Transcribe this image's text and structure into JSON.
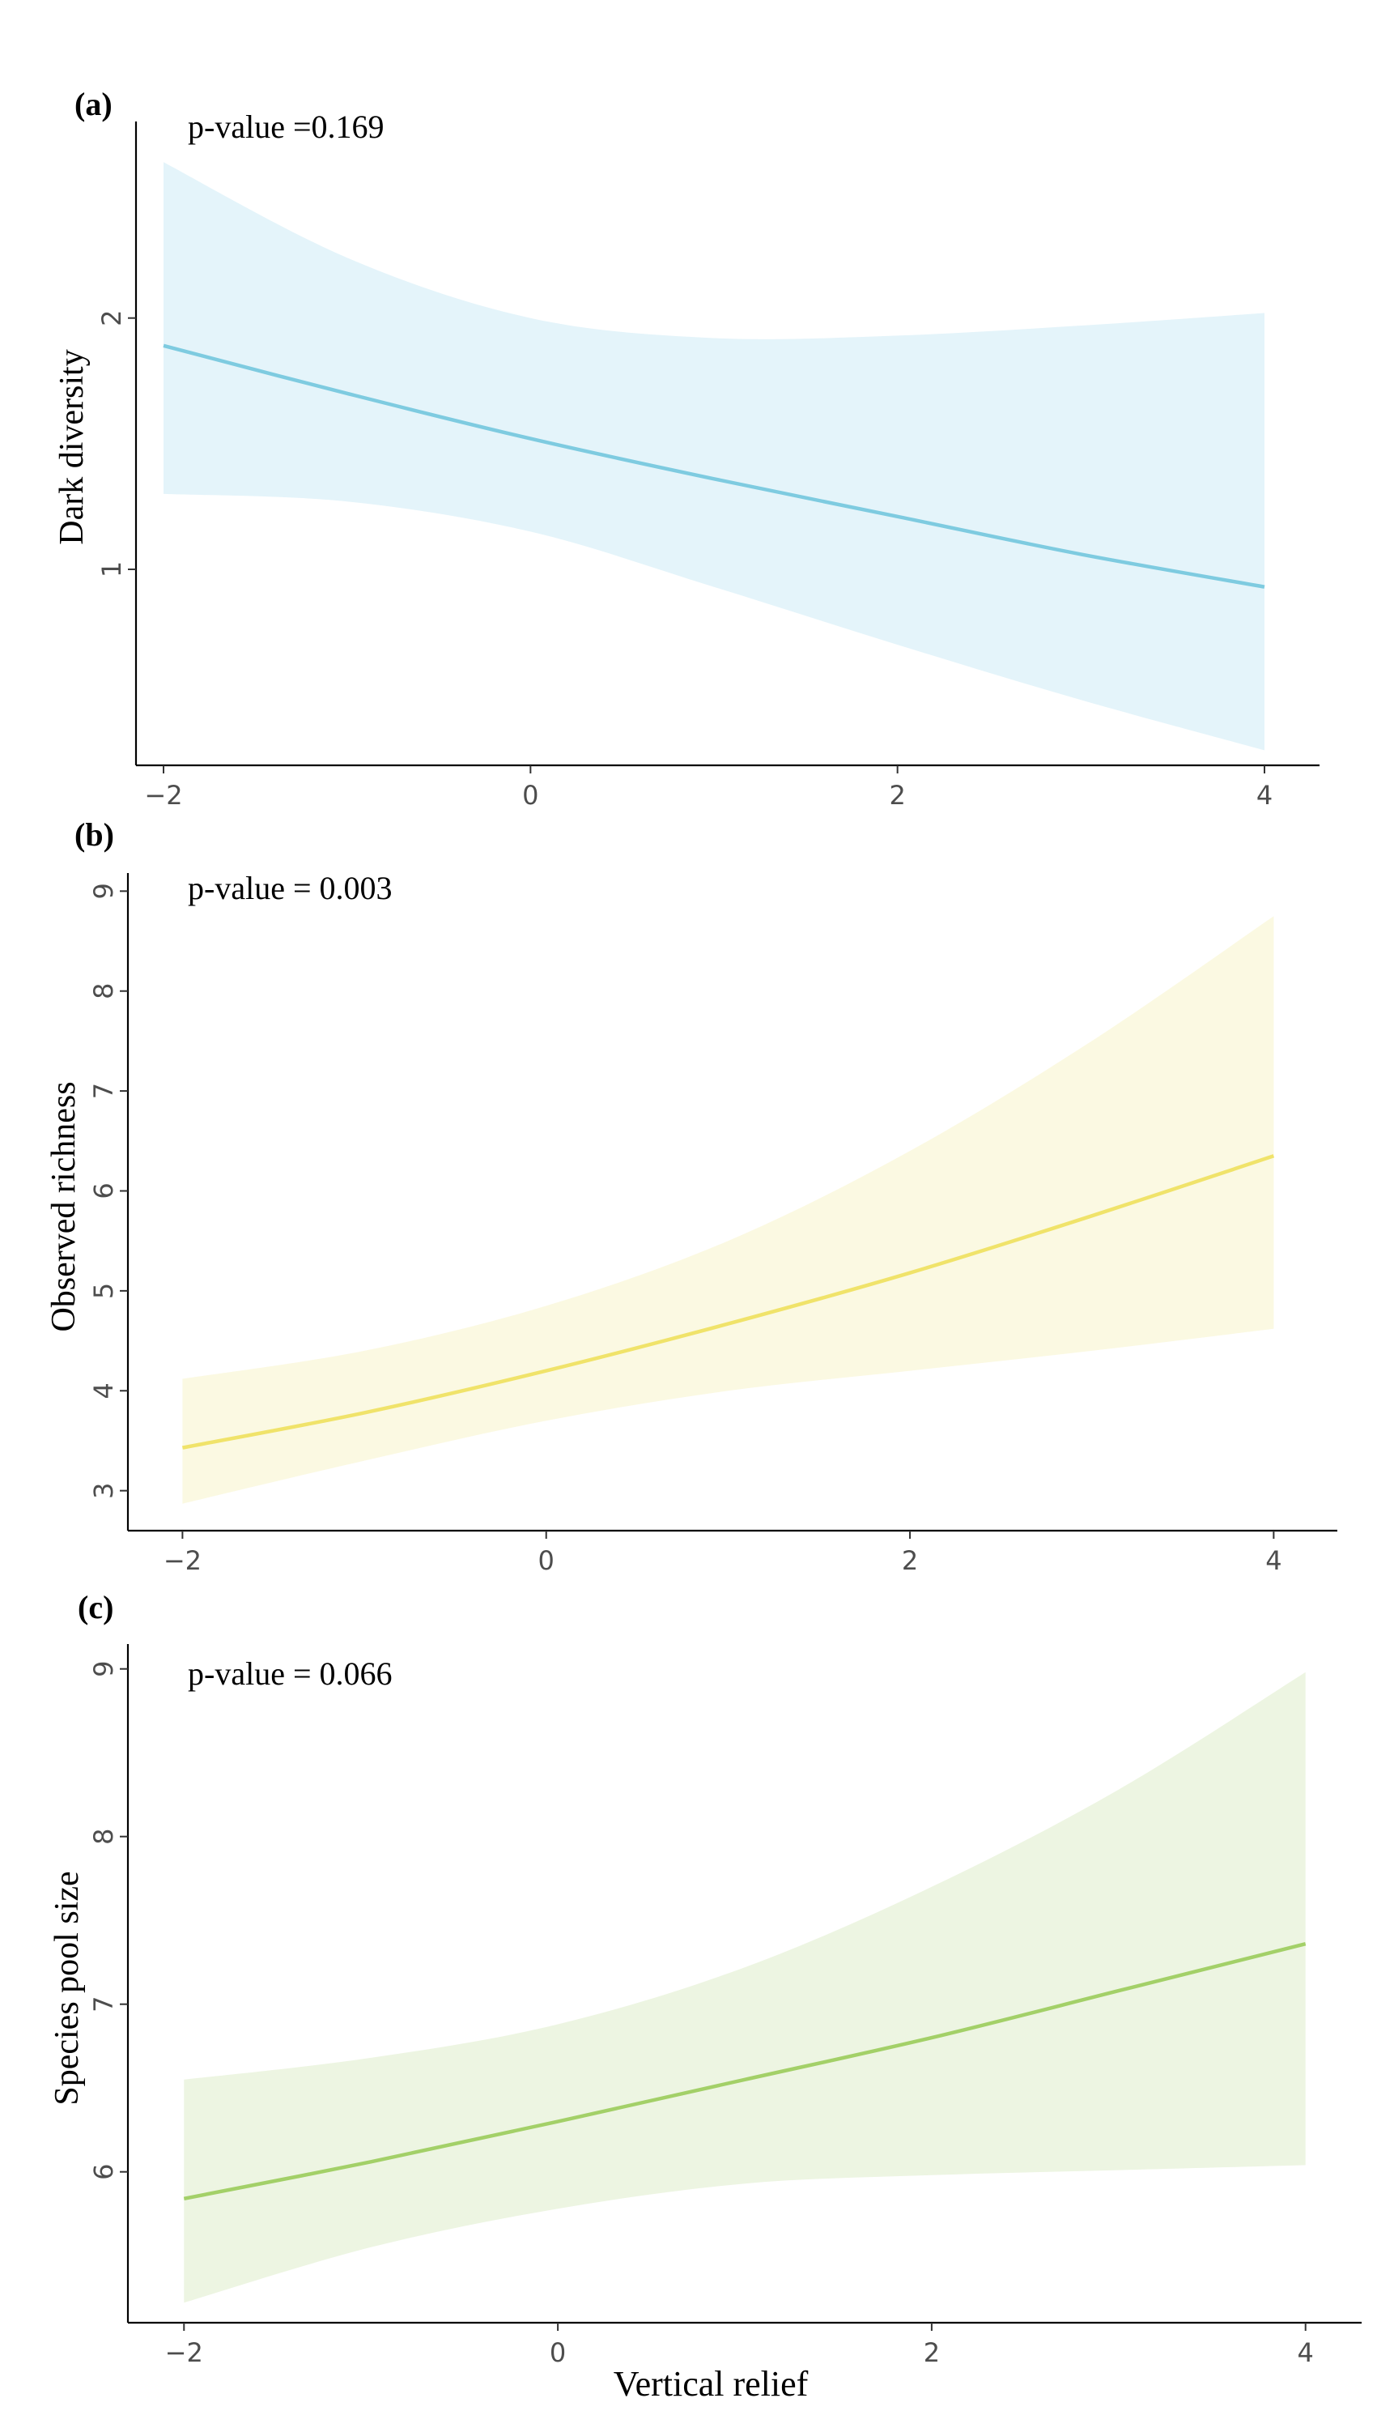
{
  "figure": {
    "xlabel": "Vertical relief"
  },
  "chart_data": [
    {
      "type": "line",
      "panel": "(a)",
      "annotation": "p-value =0.169",
      "ylabel": "Dark diversity",
      "xlabel": "",
      "xlim": [
        -2.15,
        4.3
      ],
      "ylim": [
        0.22,
        2.75
      ],
      "xticks": [
        -2,
        0,
        2,
        4
      ],
      "xtick_labels": [
        "−2",
        "0",
        "2",
        "4"
      ],
      "yticks": [
        1,
        2
      ],
      "ytick_labels": [
        "1",
        "2"
      ],
      "color": "#7ecbe0",
      "band_color": "#e4f4fa",
      "series": [
        {
          "x": [
            -2,
            -1,
            0,
            1,
            2,
            3,
            4
          ],
          "y": [
            1.89,
            1.7,
            1.52,
            1.36,
            1.21,
            1.06,
            0.93
          ],
          "lower": [
            1.3,
            1.27,
            1.15,
            0.93,
            0.7,
            0.48,
            0.28
          ],
          "upper": [
            2.62,
            2.24,
            2.0,
            1.92,
            1.93,
            1.97,
            2.02
          ]
        }
      ]
    },
    {
      "type": "line",
      "panel": "(b)",
      "annotation": "p-value = 0.003",
      "ylabel": "Observed richness",
      "xlabel": "",
      "xlim": [
        -2.3,
        4.35
      ],
      "ylim": [
        2.6,
        9.1
      ],
      "xticks": [
        -2,
        0,
        2,
        4
      ],
      "xtick_labels": [
        "−2",
        "0",
        "2",
        "4"
      ],
      "yticks": [
        3,
        4,
        5,
        6,
        7,
        8,
        9
      ],
      "ytick_labels": [
        "3",
        "4",
        "5",
        "6",
        "7",
        "8",
        "9"
      ],
      "color": "#f0e36a",
      "band_color": "#fbf9e2",
      "series": [
        {
          "x": [
            -2,
            -1,
            0,
            1,
            2,
            3,
            4
          ],
          "y": [
            3.43,
            3.78,
            4.2,
            4.67,
            5.18,
            5.75,
            6.35
          ],
          "lower": [
            2.87,
            3.3,
            3.7,
            4.0,
            4.2,
            4.4,
            4.62
          ],
          "upper": [
            4.12,
            4.4,
            4.85,
            5.5,
            6.4,
            7.5,
            8.75
          ]
        }
      ]
    },
    {
      "type": "line",
      "panel": "(c)",
      "annotation": "p-value = 0.066",
      "ylabel": "Species pool size",
      "xlabel": "",
      "xlim": [
        -2.3,
        4.3
      ],
      "ylim": [
        5.1,
        9.1
      ],
      "xticks": [
        -2,
        0,
        2,
        4
      ],
      "xtick_labels": [
        "−2",
        "0",
        "2",
        "4"
      ],
      "yticks": [
        6,
        7,
        8,
        9
      ],
      "ytick_labels": [
        "6",
        "7",
        "8",
        "9"
      ],
      "color": "#a3d068",
      "band_color": "#edf5e2",
      "series": [
        {
          "x": [
            -2,
            -1,
            0,
            1,
            2,
            3,
            4
          ],
          "y": [
            5.84,
            6.06,
            6.3,
            6.55,
            6.8,
            7.08,
            7.36
          ],
          "lower": [
            5.22,
            5.55,
            5.78,
            5.93,
            5.98,
            6.01,
            6.04
          ],
          "upper": [
            6.55,
            6.68,
            6.88,
            7.22,
            7.7,
            8.28,
            8.98
          ]
        }
      ]
    }
  ]
}
